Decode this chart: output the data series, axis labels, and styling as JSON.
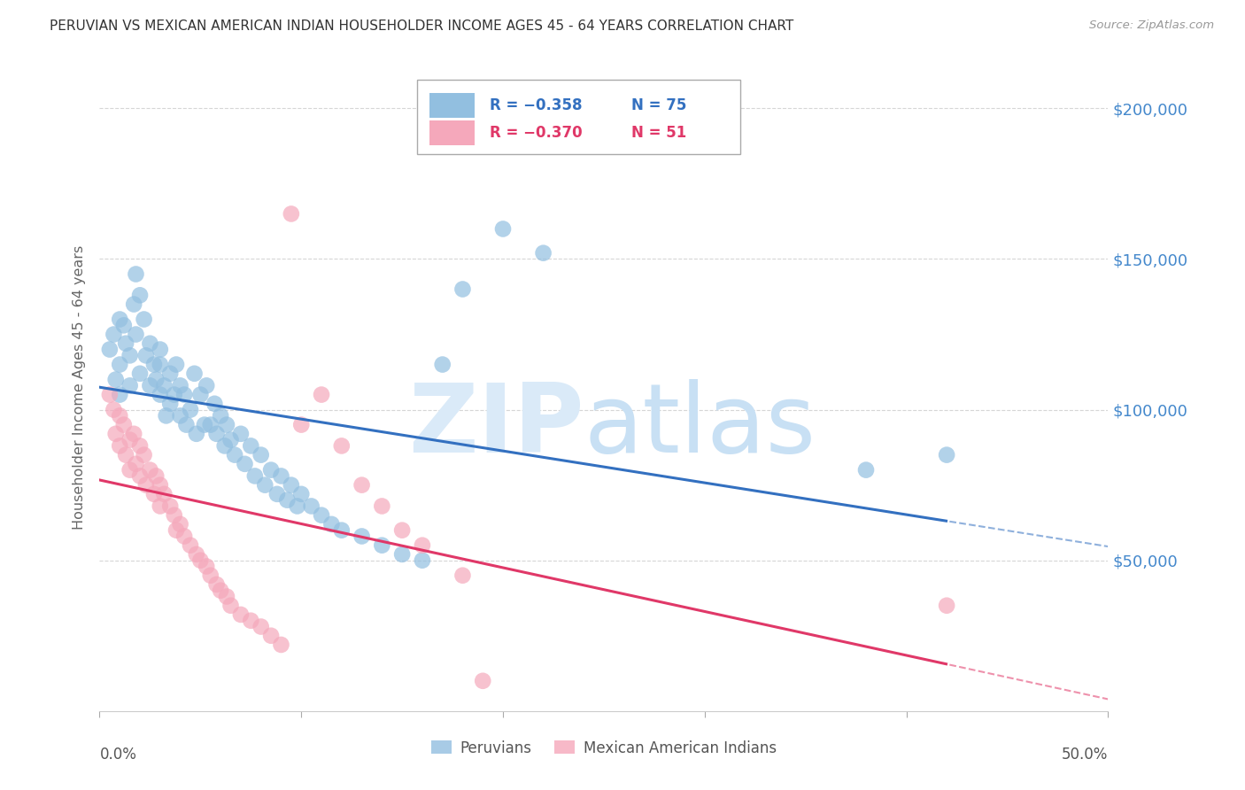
{
  "title": "PERUVIAN VS MEXICAN AMERICAN INDIAN HOUSEHOLDER INCOME AGES 45 - 64 YEARS CORRELATION CHART",
  "source": "Source: ZipAtlas.com",
  "ylabel": "Householder Income Ages 45 - 64 years",
  "yticks": [
    0,
    50000,
    100000,
    150000,
    200000
  ],
  "ytick_labels": [
    "",
    "$50,000",
    "$100,000",
    "$150,000",
    "$200,000"
  ],
  "ylim": [
    0,
    215000
  ],
  "xlim": [
    0.0,
    0.5
  ],
  "blue_color": "#92bfe0",
  "pink_color": "#f5a8bb",
  "blue_line_color": "#3370c0",
  "pink_line_color": "#e03868",
  "grid_color": "#cccccc",
  "background_color": "#ffffff",
  "title_color": "#333333",
  "axis_label_color": "#666666",
  "right_tick_color": "#4488cc",
  "peruvians_x": [
    0.005,
    0.007,
    0.008,
    0.01,
    0.01,
    0.01,
    0.012,
    0.013,
    0.015,
    0.015,
    0.017,
    0.018,
    0.018,
    0.02,
    0.02,
    0.022,
    0.023,
    0.025,
    0.025,
    0.027,
    0.028,
    0.03,
    0.03,
    0.03,
    0.032,
    0.033,
    0.035,
    0.035,
    0.037,
    0.038,
    0.04,
    0.04,
    0.042,
    0.043,
    0.045,
    0.047,
    0.048,
    0.05,
    0.052,
    0.053,
    0.055,
    0.057,
    0.058,
    0.06,
    0.062,
    0.063,
    0.065,
    0.067,
    0.07,
    0.072,
    0.075,
    0.077,
    0.08,
    0.082,
    0.085,
    0.088,
    0.09,
    0.093,
    0.095,
    0.098,
    0.1,
    0.105,
    0.11,
    0.115,
    0.12,
    0.13,
    0.14,
    0.15,
    0.16,
    0.17,
    0.18,
    0.2,
    0.22,
    0.38,
    0.42
  ],
  "peruvians_y": [
    120000,
    125000,
    110000,
    115000,
    130000,
    105000,
    128000,
    122000,
    118000,
    108000,
    135000,
    145000,
    125000,
    138000,
    112000,
    130000,
    118000,
    122000,
    108000,
    115000,
    110000,
    120000,
    105000,
    115000,
    108000,
    98000,
    112000,
    102000,
    105000,
    115000,
    108000,
    98000,
    105000,
    95000,
    100000,
    112000,
    92000,
    105000,
    95000,
    108000,
    95000,
    102000,
    92000,
    98000,
    88000,
    95000,
    90000,
    85000,
    92000,
    82000,
    88000,
    78000,
    85000,
    75000,
    80000,
    72000,
    78000,
    70000,
    75000,
    68000,
    72000,
    68000,
    65000,
    62000,
    60000,
    58000,
    55000,
    52000,
    50000,
    115000,
    140000,
    160000,
    152000,
    80000,
    85000
  ],
  "mexican_x": [
    0.005,
    0.007,
    0.008,
    0.01,
    0.01,
    0.012,
    0.013,
    0.015,
    0.015,
    0.017,
    0.018,
    0.02,
    0.02,
    0.022,
    0.023,
    0.025,
    0.027,
    0.028,
    0.03,
    0.03,
    0.032,
    0.035,
    0.037,
    0.038,
    0.04,
    0.042,
    0.045,
    0.048,
    0.05,
    0.053,
    0.055,
    0.058,
    0.06,
    0.063,
    0.065,
    0.07,
    0.075,
    0.08,
    0.085,
    0.09,
    0.095,
    0.1,
    0.11,
    0.12,
    0.13,
    0.14,
    0.15,
    0.16,
    0.18,
    0.19,
    0.42
  ],
  "mexican_y": [
    105000,
    100000,
    92000,
    98000,
    88000,
    95000,
    85000,
    90000,
    80000,
    92000,
    82000,
    88000,
    78000,
    85000,
    75000,
    80000,
    72000,
    78000,
    75000,
    68000,
    72000,
    68000,
    65000,
    60000,
    62000,
    58000,
    55000,
    52000,
    50000,
    48000,
    45000,
    42000,
    40000,
    38000,
    35000,
    32000,
    30000,
    28000,
    25000,
    22000,
    165000,
    95000,
    105000,
    88000,
    75000,
    68000,
    60000,
    55000,
    45000,
    10000,
    35000
  ]
}
